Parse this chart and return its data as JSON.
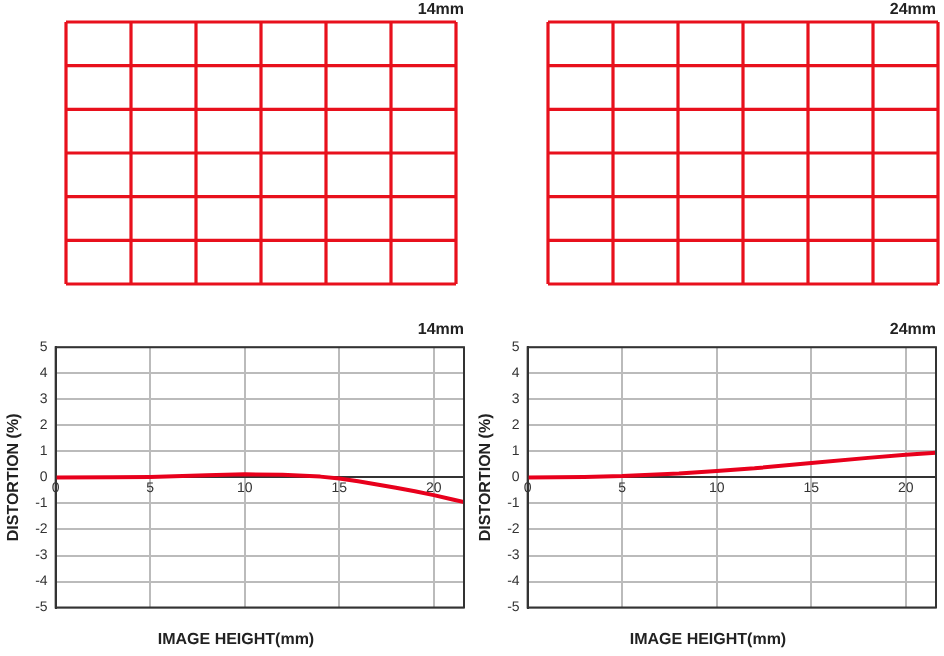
{
  "chart_data": [
    {
      "type": "other",
      "title": "14mm"
    },
    {
      "type": "other",
      "title": "24mm"
    },
    {
      "type": "line",
      "title": "14mm",
      "xlabel": "IMAGE HEIGHT(mm)",
      "ylabel": "DISTORTION (%)",
      "xlim": [
        0,
        21.6
      ],
      "xticks": [
        0,
        5,
        10,
        15,
        20
      ],
      "ylim": [
        -5,
        5
      ],
      "yticks": [
        -5,
        -4,
        -3,
        -2,
        -1,
        0,
        1,
        2,
        3,
        4,
        5
      ],
      "grid": true,
      "marker": "none",
      "series": [
        {
          "color": "#e8001c",
          "x": [
            0,
            3,
            5,
            8,
            10,
            12,
            14,
            15,
            16,
            17,
            18,
            19,
            20,
            21,
            21.6
          ],
          "values": [
            0,
            0.01,
            0.02,
            0.08,
            0.12,
            0.1,
            0.03,
            -0.04,
            -0.15,
            -0.27,
            -0.4,
            -0.53,
            -0.68,
            -0.85,
            -0.95
          ]
        }
      ]
    },
    {
      "type": "line",
      "title": "24mm",
      "xlabel": "IMAGE HEIGHT(mm)",
      "ylabel": "DISTORTION (%)",
      "xlim": [
        0,
        21.6
      ],
      "xticks": [
        0,
        5,
        10,
        15,
        20
      ],
      "ylim": [
        -5,
        5
      ],
      "yticks": [
        -5,
        -4,
        -3,
        -2,
        -1,
        0,
        1,
        2,
        3,
        4,
        5
      ],
      "grid": true,
      "marker": "none",
      "series": [
        {
          "color": "#e8001c",
          "x": [
            0,
            3,
            5,
            8,
            10,
            12,
            15,
            18,
            20,
            21.6
          ],
          "values": [
            0,
            0.02,
            0.05,
            0.15,
            0.25,
            0.35,
            0.55,
            0.75,
            0.87,
            0.95
          ]
        }
      ]
    }
  ]
}
